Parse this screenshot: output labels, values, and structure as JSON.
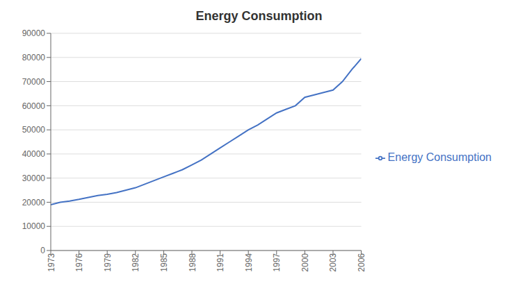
{
  "chart_data": {
    "type": "line",
    "title": "Energy Consumption",
    "x": [
      1973,
      1974,
      1975,
      1976,
      1977,
      1978,
      1979,
      1980,
      1981,
      1982,
      1983,
      1984,
      1985,
      1986,
      1987,
      1988,
      1989,
      1990,
      1991,
      1992,
      1993,
      1994,
      1995,
      1996,
      1997,
      1998,
      1999,
      2000,
      2001,
      2002,
      2003,
      2004,
      2005,
      2006
    ],
    "series": [
      {
        "name": "Energy Consumption",
        "color": "#4472C4",
        "values": [
          19000,
          20000,
          20500,
          21200,
          22000,
          22800,
          23300,
          24000,
          25000,
          26000,
          27500,
          29000,
          30500,
          32000,
          33500,
          35500,
          37500,
          40000,
          42500,
          45000,
          47500,
          50000,
          52000,
          54500,
          57000,
          58500,
          60000,
          63500,
          64500,
          65500,
          66500,
          70000,
          75000,
          79500
        ]
      }
    ],
    "xlim": [
      1973,
      2006
    ],
    "xticks": [
      1973,
      1976,
      1979,
      1982,
      1985,
      1988,
      1991,
      1994,
      1997,
      2000,
      2003,
      2006
    ],
    "ylim": [
      0,
      90000
    ],
    "yticks": [
      0,
      10000,
      20000,
      30000,
      40000,
      50000,
      60000,
      70000,
      80000,
      90000
    ],
    "grid": true,
    "legend": "right"
  }
}
